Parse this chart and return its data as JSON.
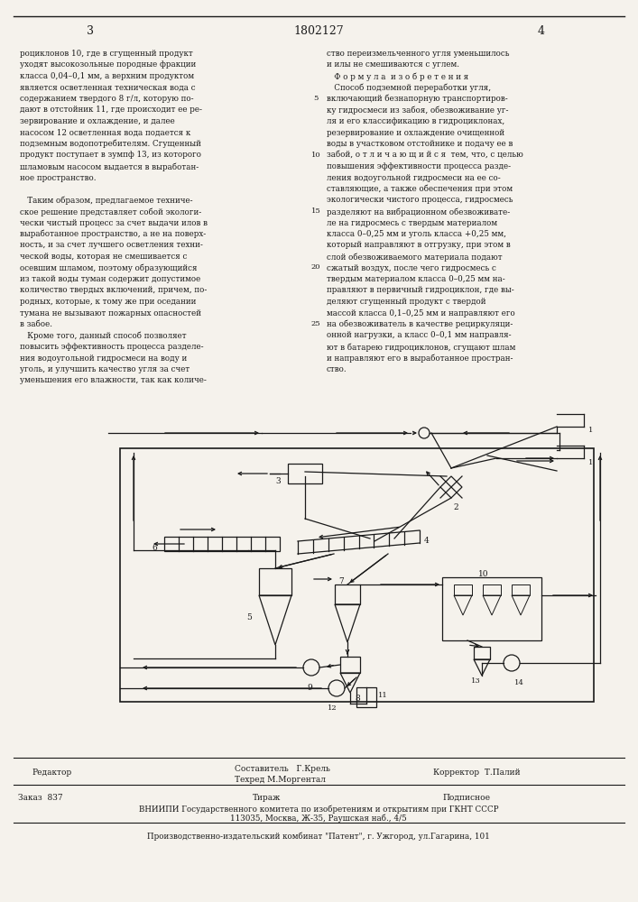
{
  "page_number_left": "3",
  "patent_number": "1802127",
  "page_number_right": "4",
  "bg": "#f5f2ec",
  "tc": "#1a1a1a",
  "left_col": [
    "роциклонов 10, где в сгущенный продукт",
    "уходят высокозольные породные фракции",
    "класса 0,04–0,1 мм, а верхним продуктом",
    "является осветленная техническая вода с",
    "содержанием твердого 8 г/л, которую по-",
    "дают в отстойник 11, где происходит ее ре-",
    "зервирование и охлаждение, и далее",
    "насосом 12 осветленная вода подается к",
    "подземным водопотребителям. Сгущенный",
    "продукт поступает в зумпф 13, из которого",
    "шламовым насосом выдается в выработан-",
    "ное пространство.",
    "",
    "   Таким образом, предлагаемое техниче-",
    "ское решение представляет собой экологи-",
    "чески чистый процесс за счет выдачи илов в",
    "выработанное пространство, а не на поверх-",
    "ность, и за счет лучшего осветления техни-",
    "ческой воды, которая не смешивается с",
    "осевшим шламом, поэтому образующийся",
    "из такой воды туман содержит допустимое",
    "количество твердых включений, причем, по-",
    "родных, которые, к тому же при оседании",
    "тумана не вызывают пожарных опасностей",
    "в забое.",
    "   Кроме того, данный способ позволяет",
    "повысить эффективность процесса разделе-",
    "ния водоугольной гидросмеси на воду и",
    "уголь, и улучшить качество угля за счет",
    "уменьшения его влажности, так как количе-"
  ],
  "right_col": [
    "ство переизмельченного угля уменьшилось",
    "и илы не смешиваются с углем.",
    "   Ф о р м у л а  и з о б р е т е н и я",
    "   Способ подземной переработки угля,",
    "включающий безнапорную транспортиров-",
    "ку гидросмеси из забоя, обезвоживание уг-",
    "ля и его классификацию в гидроциклонах,",
    "резервирование и охлаждение очищенной",
    "воды в участковом отстойнике и подачу ее в",
    "забой, о т л и ч а ю щ и й с я  тем, что, с целью",
    "повышения эффективности процесса разде-",
    "ления водоугольной гидросмеси на ее со-",
    "ставляющие, а также обеспечения при этом",
    "экологически чистого процесса, гидросмесь",
    "разделяют на вибрационном обезвоживате-",
    "ле на гидросмесь с твердым материалом",
    "класса 0–0,25 мм и уголь класса +0,25 мм,",
    "который направляют в отгрузку, при этом в",
    "слой обезвоживаемого материала подают",
    "сжатый воздух, после чего гидросмесь с",
    "твердым материалом класса 0–0,25 мм на-",
    "правляют в первичный гидроциклон, где вы-",
    "деляют сгущенный продукт с твердой",
    "массой класса 0,1–0,25 мм и направляют его",
    "на обезвоживатель в качестве рециркуляци-",
    "онной нагрузки, а класс 0–0,1 мм направля-",
    "ют в батарею гидроциклонов, сгущают шлам",
    "и направляют его в выработанное простран-",
    "ство."
  ],
  "footer_editor": "Редактор",
  "footer_comp": "Составитель   Г.Крель",
  "footer_tech": "Техред М.Моргентал",
  "footer_corr": "Корректор  Т.Палий",
  "footer_order": "Заказ  837",
  "footer_circ": "Тираж",
  "footer_sub": "Подписное",
  "footer_org": "ВНИИПИ Государственного комитета по изобретениям и открытиям при ГКНТ СССР",
  "footer_addr": "113035, Москва, Ж-35, Раушская наб., 4/5",
  "footer_prod": "Производственно-издательский комбинат \"Патент\", г. Ужгород, ул.Гагарина, 101"
}
